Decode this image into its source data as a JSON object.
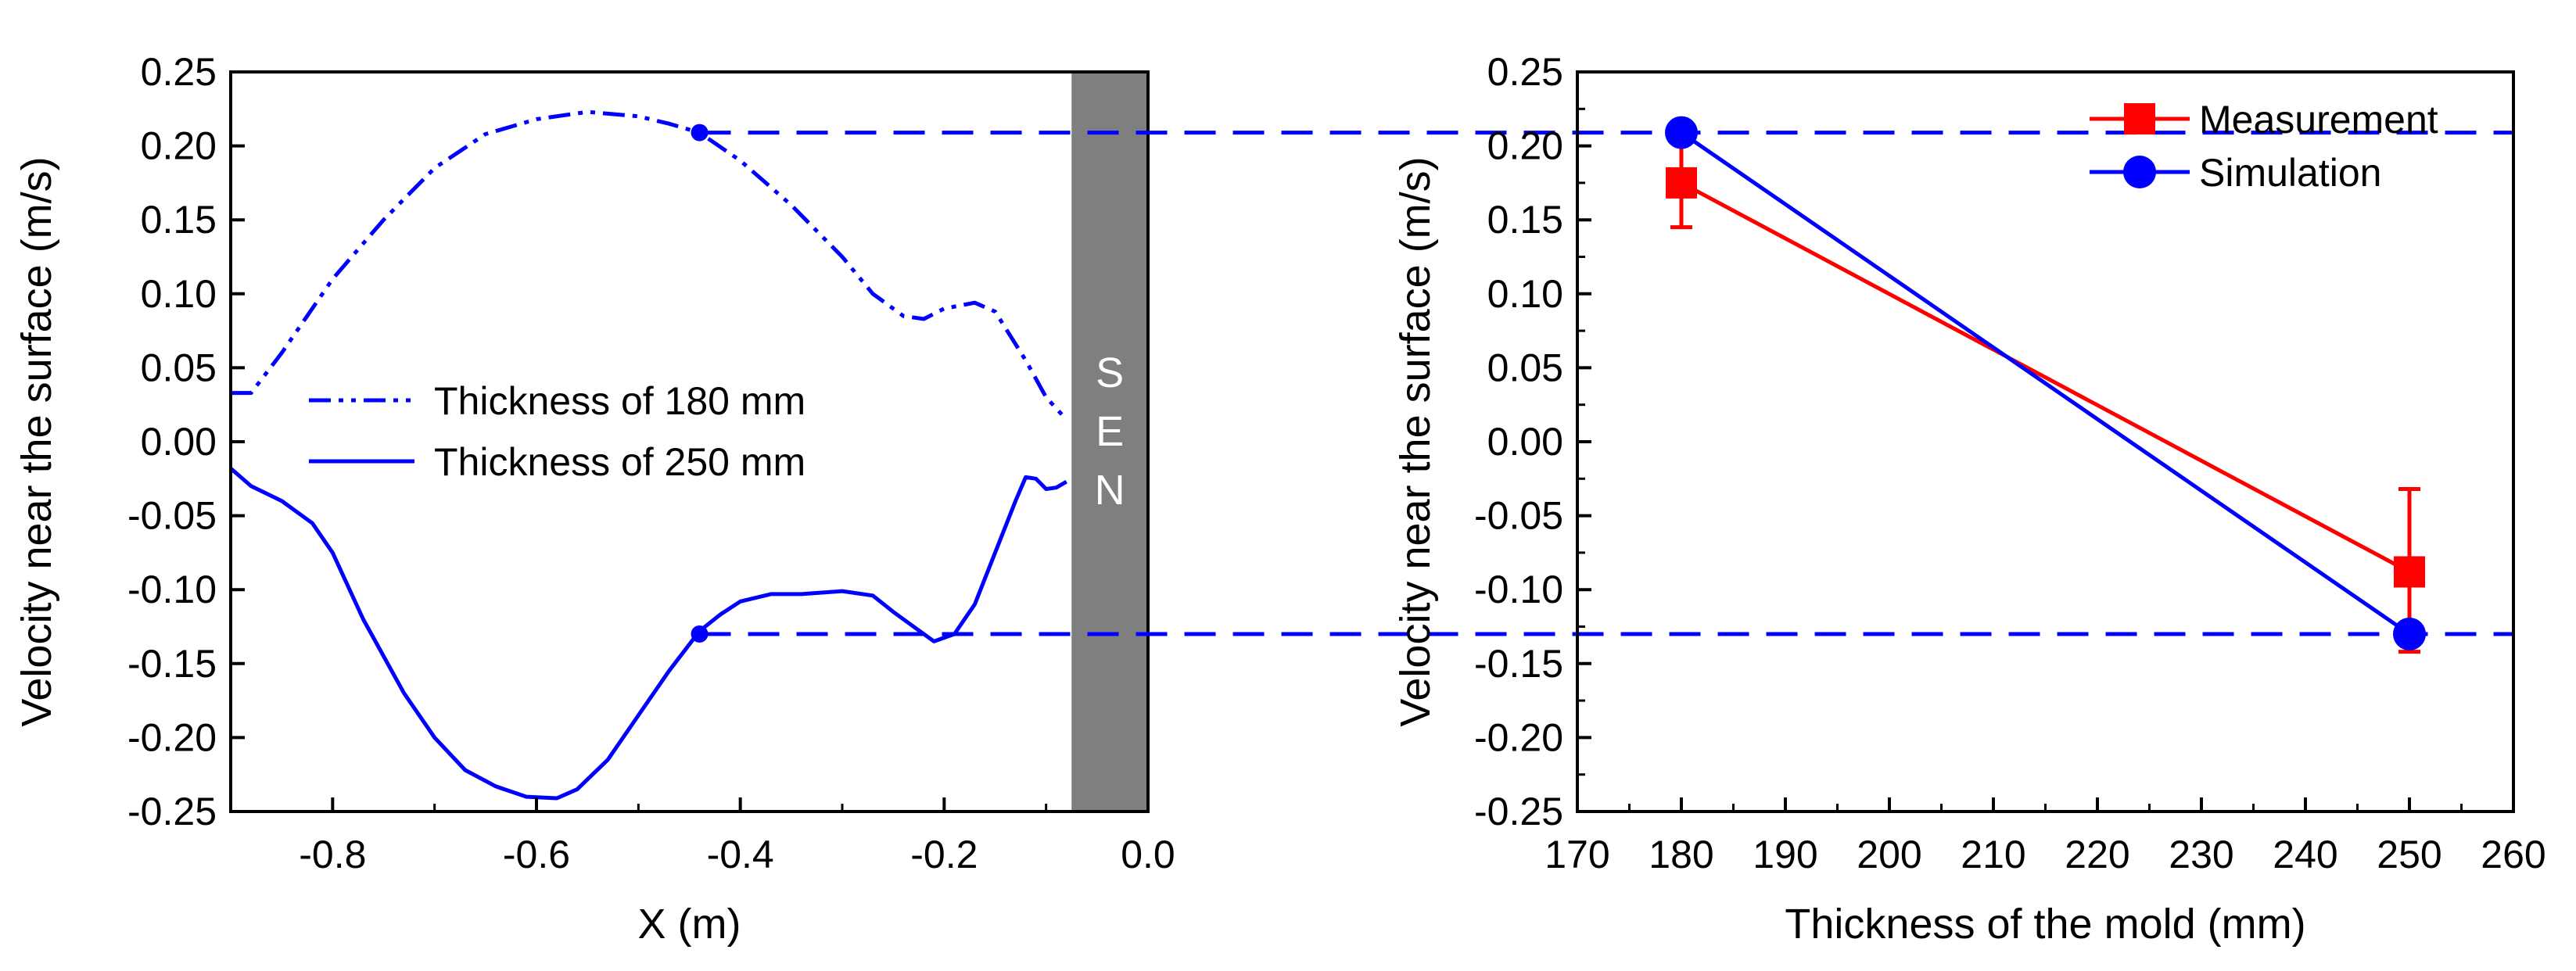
{
  "chart_data": [
    {
      "type": "line",
      "xlabel": "X (m)",
      "ylabel": "Velocity near the surface (m/s)",
      "xlim": [
        -0.9,
        0.0
      ],
      "ylim": [
        -0.25,
        0.25
      ],
      "xticks": [
        "-0.8",
        "-0.6",
        "-0.4",
        "-0.2",
        "0.0"
      ],
      "xtick_values": [
        -0.8,
        -0.6,
        -0.4,
        -0.2,
        0.0
      ],
      "yticks": [
        "0.25",
        "0.20",
        "0.15",
        "0.10",
        "0.05",
        "0.00",
        "-0.05",
        "-0.10",
        "-0.15",
        "-0.20",
        "-0.25"
      ],
      "ytick_values": [
        0.25,
        0.2,
        0.15,
        0.1,
        0.05,
        0.0,
        -0.05,
        -0.1,
        -0.15,
        -0.2,
        -0.25
      ],
      "sen_label": [
        "S",
        "E",
        "N"
      ],
      "sen_range": [
        -0.075,
        0.0
      ],
      "legend_position": "center-left",
      "marker_x": -0.44,
      "series": [
        {
          "name": "Thickness of 180 mm",
          "style": "dash-dot-dot",
          "color": "#0000ff",
          "x": [
            -0.9,
            -0.88,
            -0.85,
            -0.8,
            -0.75,
            -0.7,
            -0.65,
            -0.6,
            -0.55,
            -0.5,
            -0.47,
            -0.44,
            -0.4,
            -0.35,
            -0.3,
            -0.27,
            -0.24,
            -0.22,
            -0.2,
            -0.17,
            -0.15,
            -0.12,
            -0.1,
            -0.08
          ],
          "y": [
            0.033,
            0.033,
            0.06,
            0.11,
            0.15,
            0.185,
            0.208,
            0.218,
            0.223,
            0.22,
            0.215,
            0.209,
            0.19,
            0.16,
            0.125,
            0.1,
            0.085,
            0.083,
            0.09,
            0.094,
            0.088,
            0.055,
            0.03,
            0.015
          ]
        },
        {
          "name": "Thickness of 250 mm",
          "style": "solid",
          "color": "#0000ff",
          "x": [
            -0.9,
            -0.88,
            -0.85,
            -0.82,
            -0.8,
            -0.77,
            -0.73,
            -0.7,
            -0.67,
            -0.64,
            -0.61,
            -0.58,
            -0.56,
            -0.53,
            -0.5,
            -0.47,
            -0.44,
            -0.42,
            -0.4,
            -0.37,
            -0.34,
            -0.3,
            -0.27,
            -0.25,
            -0.23,
            -0.21,
            -0.19,
            -0.17,
            -0.15,
            -0.13,
            -0.12,
            -0.11,
            -0.1,
            -0.09,
            -0.08
          ],
          "y": [
            -0.018,
            -0.03,
            -0.04,
            -0.055,
            -0.075,
            -0.12,
            -0.17,
            -0.2,
            -0.222,
            -0.233,
            -0.24,
            -0.241,
            -0.235,
            -0.215,
            -0.185,
            -0.155,
            -0.128,
            -0.117,
            -0.108,
            -0.103,
            -0.103,
            -0.101,
            -0.104,
            -0.115,
            -0.125,
            -0.135,
            -0.13,
            -0.11,
            -0.075,
            -0.04,
            -0.024,
            -0.025,
            -0.032,
            -0.031,
            -0.027
          ]
        }
      ]
    },
    {
      "type": "line",
      "xlabel": "Thickness of the mold (mm)",
      "ylabel": "Velocity near the surface (m/s)",
      "xlim": [
        170,
        260
      ],
      "ylim": [
        -0.25,
        0.25
      ],
      "xticks": [
        "170",
        "180",
        "190",
        "200",
        "210",
        "220",
        "230",
        "240",
        "250",
        "260"
      ],
      "xtick_values": [
        170,
        180,
        190,
        200,
        210,
        220,
        230,
        240,
        250,
        260
      ],
      "yticks": [
        "0.25",
        "0.20",
        "0.15",
        "0.10",
        "0.05",
        "0.00",
        "-0.05",
        "-0.10",
        "-0.15",
        "-0.20",
        "-0.25"
      ],
      "ytick_values": [
        0.25,
        0.2,
        0.15,
        0.1,
        0.05,
        0.0,
        -0.05,
        -0.1,
        -0.15,
        -0.2,
        -0.25
      ],
      "legend_position": "top-right",
      "series": [
        {
          "name": "Measurement",
          "marker": "square",
          "color": "#ff0000",
          "x": [
            180,
            250
          ],
          "y": [
            0.175,
            -0.088
          ],
          "error_low": [
            0.145,
            -0.142
          ],
          "error_high": [
            0.205,
            -0.032
          ]
        },
        {
          "name": "Simulation",
          "marker": "circle",
          "color": "#0000ff",
          "x": [
            180,
            250
          ],
          "y": [
            0.209,
            -0.13
          ]
        }
      ]
    }
  ],
  "connectors": [
    {
      "y": 0.209,
      "color": "#0000ff",
      "style": "dashed"
    },
    {
      "y": -0.13,
      "color": "#0000ff",
      "style": "dashed"
    }
  ]
}
